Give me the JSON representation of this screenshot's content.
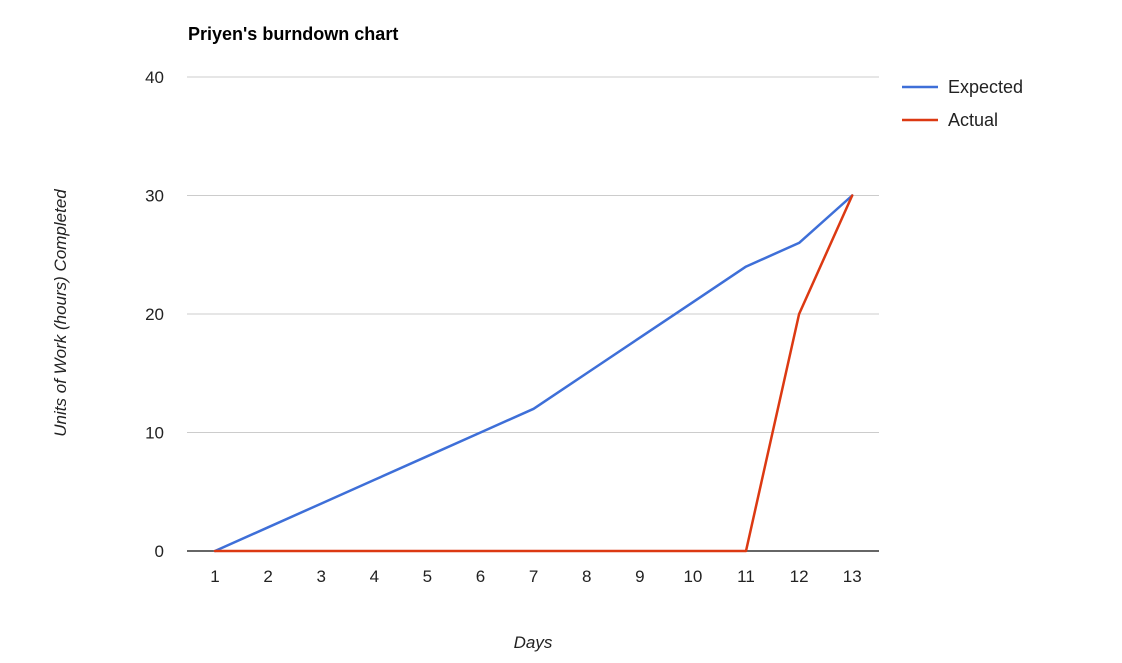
{
  "chart_data": {
    "type": "line",
    "title": "Priyen's burndown chart",
    "xlabel": "Days",
    "ylabel": "Units of Work (hours) Completed",
    "categories": [
      "1",
      "2",
      "3",
      "4",
      "5",
      "6",
      "7",
      "8",
      "9",
      "10",
      "11",
      "12",
      "13"
    ],
    "ylim": [
      0,
      40
    ],
    "yticks": [
      0,
      10,
      20,
      30,
      40
    ],
    "grid": true,
    "legend": "right",
    "series": [
      {
        "name": "Expected",
        "color": "#3e6fd8",
        "values": [
          0,
          2,
          4,
          6,
          8,
          10,
          12,
          15,
          18,
          21,
          24,
          26,
          30
        ]
      },
      {
        "name": "Actual",
        "color": "#dc3912",
        "values": [
          0,
          0,
          0,
          0,
          0,
          0,
          0,
          0,
          0,
          0,
          0,
          20,
          30
        ]
      }
    ]
  }
}
